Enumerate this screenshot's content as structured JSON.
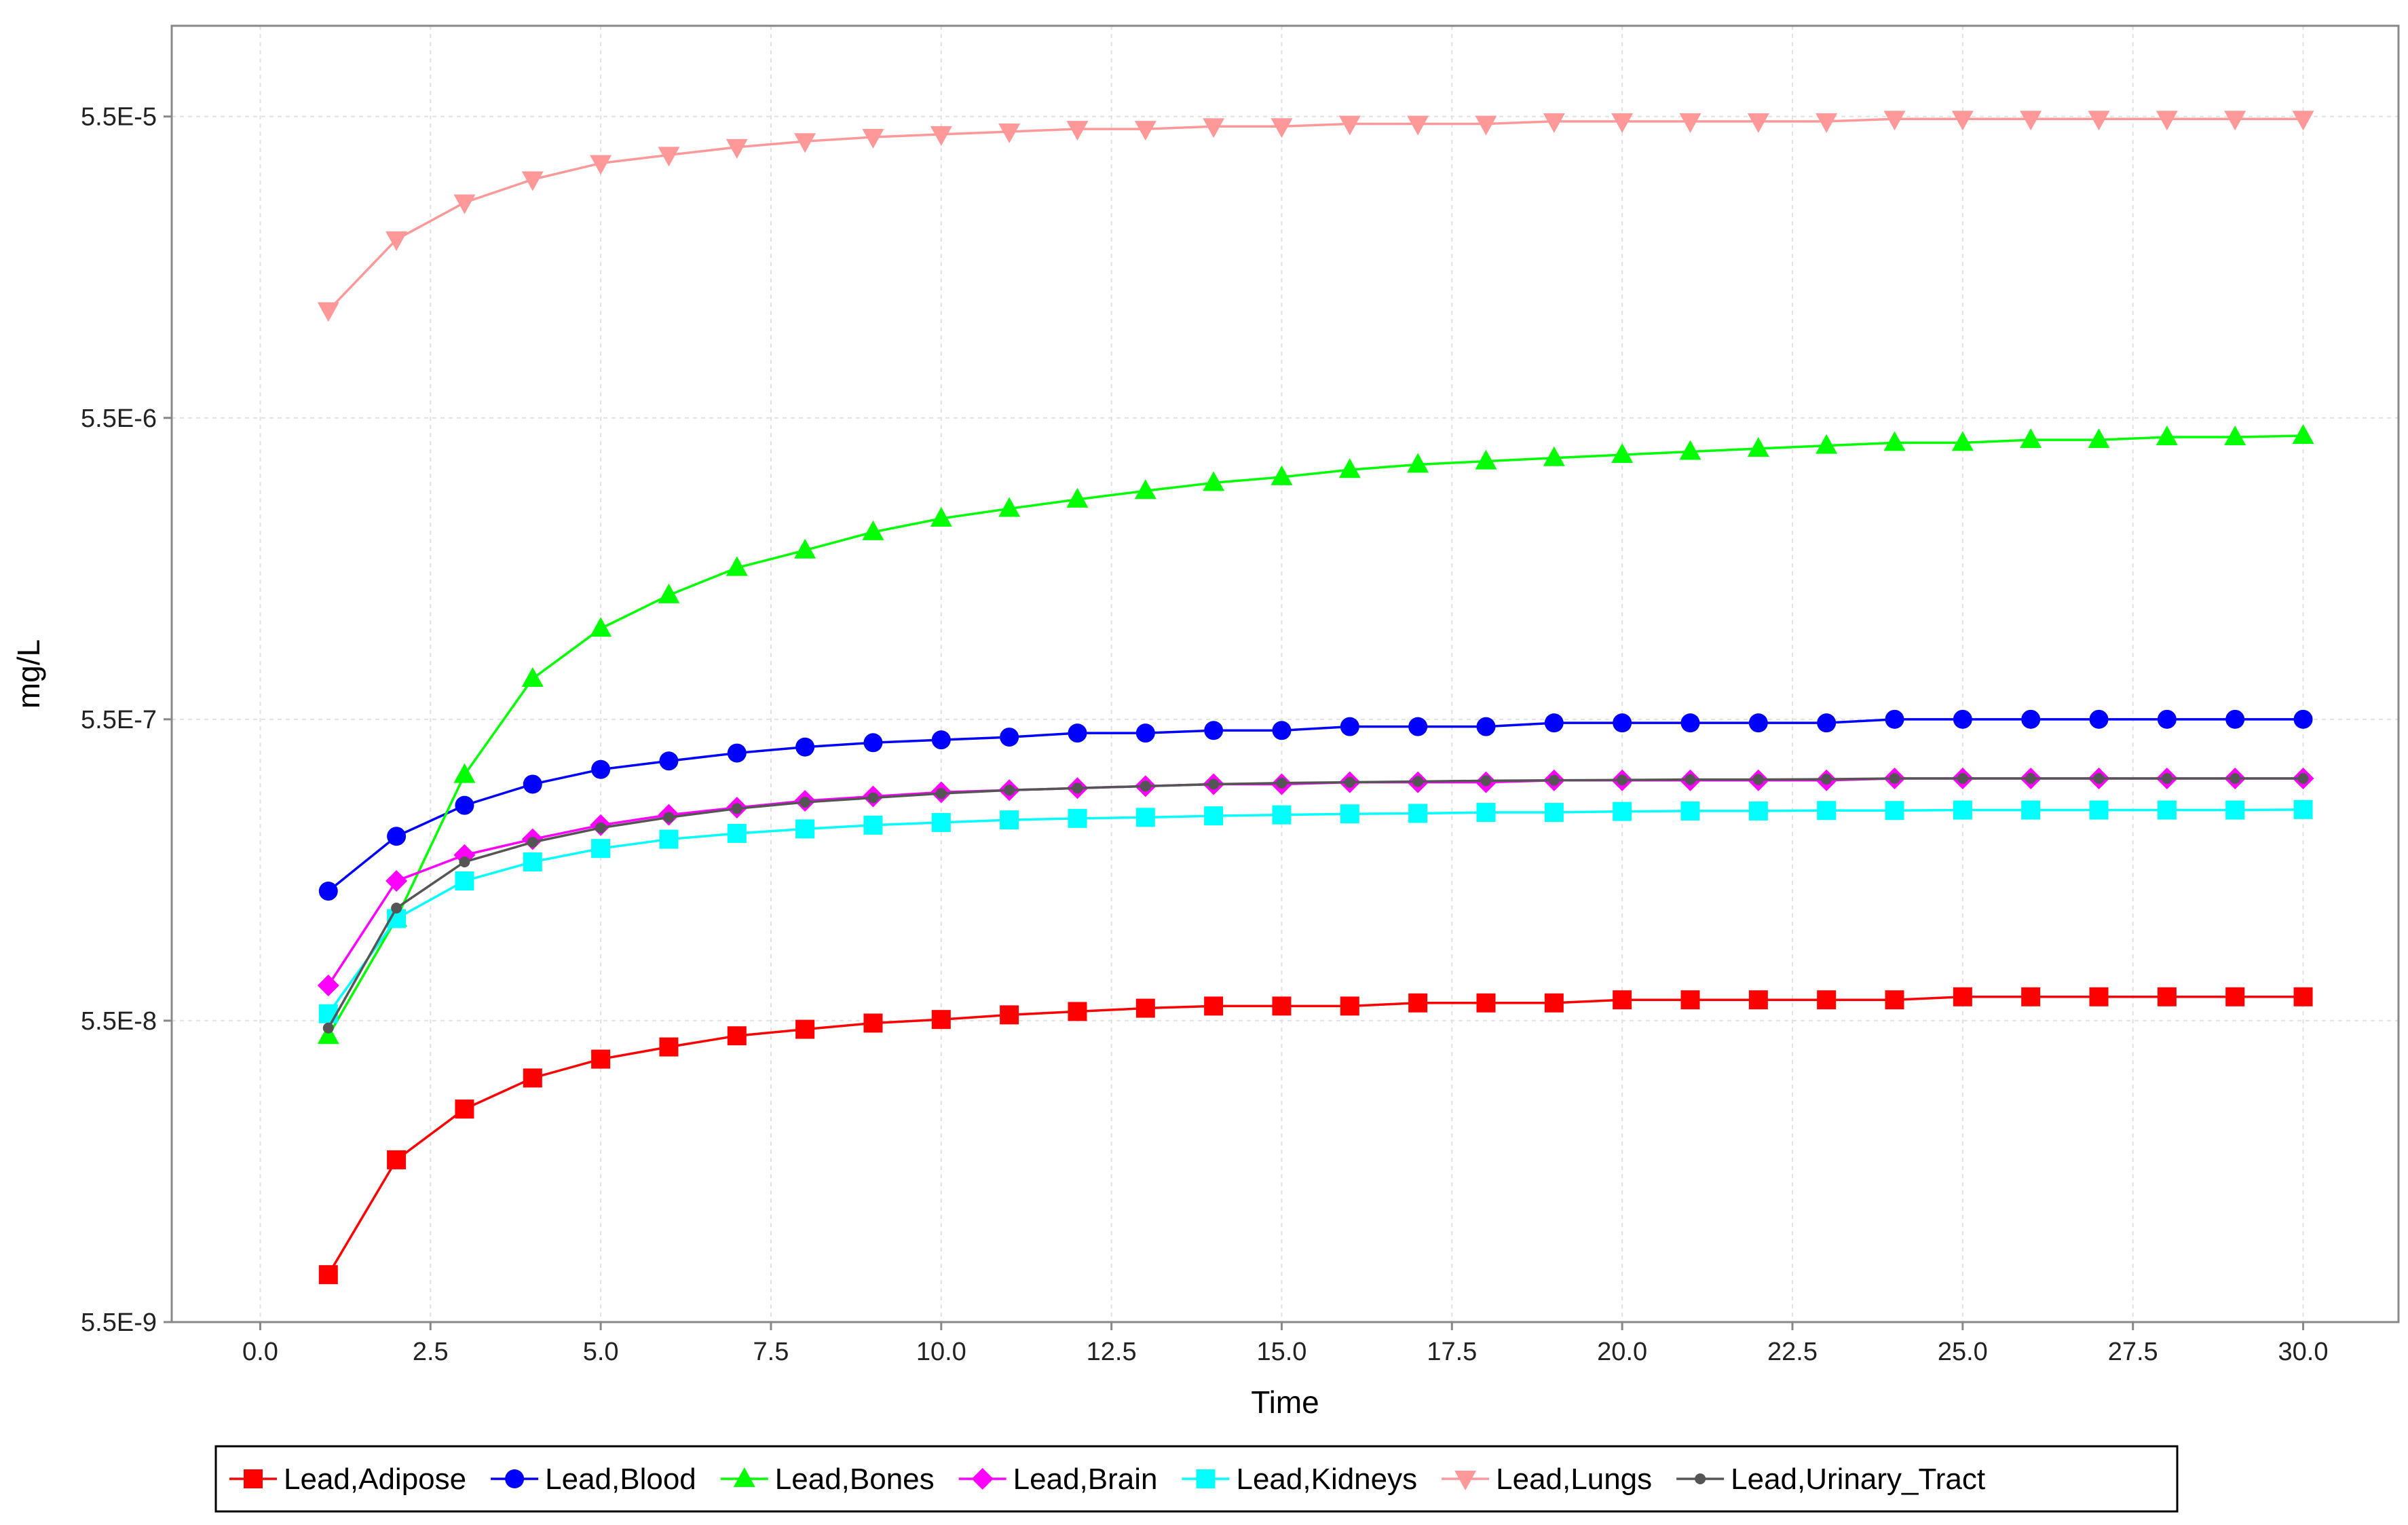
{
  "chart_data": {
    "type": "line",
    "title": "",
    "xlabel": "Time",
    "ylabel": "mg/L",
    "xlim": [
      -1.3,
      31.4
    ],
    "x_ticks": [
      0.0,
      2.5,
      5.0,
      7.5,
      10.0,
      12.5,
      15.0,
      17.5,
      20.0,
      22.5,
      25.0,
      27.5,
      30.0
    ],
    "x_tick_labels": [
      "0.0",
      "2.5",
      "5.0",
      "7.5",
      "10.0",
      "12.5",
      "15.0",
      "17.5",
      "20.0",
      "22.5",
      "25.0",
      "27.5",
      "30.0"
    ],
    "y_scale": "log",
    "ylim": [
      5.5e-09,
      0.00011
    ],
    "y_ticks": [
      5.5e-09,
      5.5e-08,
      5.5e-07,
      5.5e-06,
      5.5e-05
    ],
    "y_tick_labels": [
      "5.5E-9",
      "5.5E-8",
      "5.5E-7",
      "5.5E-6",
      "5.5E-5"
    ],
    "grid": true,
    "legend_position": "bottom",
    "x": [
      1,
      2,
      3,
      4,
      5,
      6,
      7,
      8,
      9,
      10,
      11,
      12,
      13,
      14,
      15,
      16,
      17,
      18,
      19,
      20,
      21,
      22,
      23,
      24,
      25,
      26,
      27,
      28,
      29,
      30
    ],
    "series": [
      {
        "name": "Lead,Adipose",
        "color": "#ff0000",
        "marker": "square",
        "values": [
          7.9e-09,
          1.9e-08,
          2.8e-08,
          3.55e-08,
          4.1e-08,
          4.5e-08,
          4.9e-08,
          5.15e-08,
          5.4e-08,
          5.55e-08,
          5.75e-08,
          5.9e-08,
          6.05e-08,
          6.15e-08,
          6.15e-08,
          6.15e-08,
          6.3e-08,
          6.3e-08,
          6.3e-08,
          6.45e-08,
          6.45e-08,
          6.45e-08,
          6.45e-08,
          6.45e-08,
          6.6e-08,
          6.6e-08,
          6.6e-08,
          6.6e-08,
          6.6e-08,
          6.6e-08
        ]
      },
      {
        "name": "Lead,Blood",
        "color": "#0000ff",
        "marker": "circle",
        "values": [
          1.48e-07,
          2.25e-07,
          2.85e-07,
          3.35e-07,
          3.75e-07,
          4e-07,
          4.25e-07,
          4.45e-07,
          4.6e-07,
          4.7e-07,
          4.8e-07,
          4.95e-07,
          4.95e-07,
          5.05e-07,
          5.05e-07,
          5.2e-07,
          5.2e-07,
          5.2e-07,
          5.35e-07,
          5.35e-07,
          5.35e-07,
          5.35e-07,
          5.35e-07,
          5.5e-07,
          5.5e-07,
          5.5e-07,
          5.5e-07,
          5.5e-07,
          5.5e-07,
          5.5e-07
        ]
      },
      {
        "name": "Lead,Bones",
        "color": "#00ff00",
        "marker": "triangle-up",
        "values": [
          4.9e-08,
          1.2e-07,
          3.6e-07,
          7.5e-07,
          1.1e-06,
          1.42e-06,
          1.75e-06,
          2e-06,
          2.3e-06,
          2.55e-06,
          2.75e-06,
          2.95e-06,
          3.15e-06,
          3.35e-06,
          3.5e-06,
          3.7e-06,
          3.85e-06,
          3.95e-06,
          4.05e-06,
          4.15e-06,
          4.25e-06,
          4.35e-06,
          4.45e-06,
          4.55e-06,
          4.55e-06,
          4.65e-06,
          4.65e-06,
          4.75e-06,
          4.75e-06,
          4.8e-06
        ]
      },
      {
        "name": "Lead,Brain",
        "color": "#ff00ff",
        "marker": "diamond",
        "values": [
          7.2e-08,
          1.6e-07,
          1.95e-07,
          2.2e-07,
          2.45e-07,
          2.65e-07,
          2.8e-07,
          2.95e-07,
          3.05e-07,
          3.15e-07,
          3.2e-07,
          3.25e-07,
          3.3e-07,
          3.35e-07,
          3.35e-07,
          3.4e-07,
          3.4e-07,
          3.4e-07,
          3.45e-07,
          3.45e-07,
          3.45e-07,
          3.45e-07,
          3.45e-07,
          3.5e-07,
          3.5e-07,
          3.5e-07,
          3.5e-07,
          3.5e-07,
          3.5e-07,
          3.5e-07
        ]
      },
      {
        "name": "Lead,Kidneys",
        "color": "#00ffff",
        "marker": "square",
        "values": [
          5.8e-08,
          1.2e-07,
          1.6e-07,
          1.85e-07,
          2.05e-07,
          2.2e-07,
          2.3e-07,
          2.38e-07,
          2.45e-07,
          2.5e-07,
          2.55e-07,
          2.58e-07,
          2.6e-07,
          2.63e-07,
          2.65e-07,
          2.67e-07,
          2.68e-07,
          2.7e-07,
          2.7e-07,
          2.72e-07,
          2.73e-07,
          2.73e-07,
          2.74e-07,
          2.74e-07,
          2.75e-07,
          2.75e-07,
          2.75e-07,
          2.75e-07,
          2.75e-07,
          2.76e-07
        ]
      },
      {
        "name": "Lead,Lungs",
        "color": "#ff9999",
        "marker": "triangle-down",
        "values": [
          1.25e-05,
          2.15e-05,
          2.85e-05,
          3.4e-05,
          3.85e-05,
          4.1e-05,
          4.35e-05,
          4.55e-05,
          4.7e-05,
          4.8e-05,
          4.9e-05,
          5e-05,
          5e-05,
          5.1e-05,
          5.1e-05,
          5.2e-05,
          5.2e-05,
          5.2e-05,
          5.3e-05,
          5.3e-05,
          5.3e-05,
          5.3e-05,
          5.3e-05,
          5.4e-05,
          5.4e-05,
          5.4e-05,
          5.4e-05,
          5.4e-05,
          5.4e-05,
          5.4e-05
        ]
      },
      {
        "name": "Lead,Urinary_Tract",
        "color": "#555555",
        "marker": "circle-small",
        "values": [
          5.2e-08,
          1.3e-07,
          1.85e-07,
          2.15e-07,
          2.4e-07,
          2.6e-07,
          2.78e-07,
          2.92e-07,
          3.02e-07,
          3.12e-07,
          3.2e-07,
          3.25e-07,
          3.3e-07,
          3.35e-07,
          3.38e-07,
          3.4e-07,
          3.42e-07,
          3.44e-07,
          3.45e-07,
          3.46e-07,
          3.47e-07,
          3.47e-07,
          3.48e-07,
          3.5e-07,
          3.5e-07,
          3.5e-07,
          3.5e-07,
          3.5e-07,
          3.5e-07,
          3.5e-07
        ]
      }
    ]
  }
}
